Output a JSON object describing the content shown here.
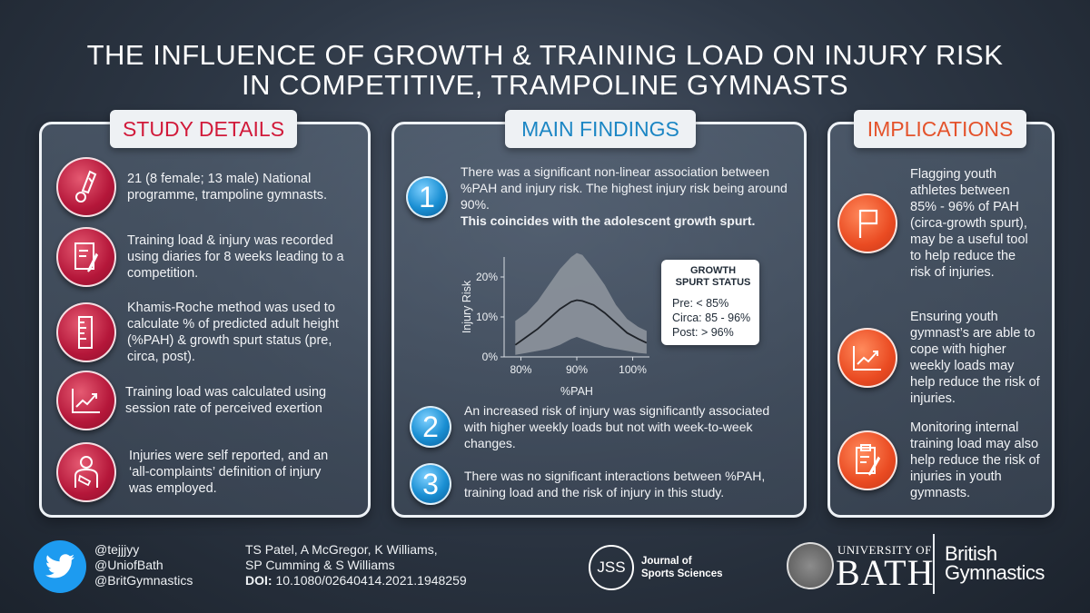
{
  "title": {
    "line1": "THE INFLUENCE OF GROWTH & TRAINING LOAD ON INJURY RISK",
    "line2": "IN COMPETITIVE, TRAMPOLINE GYMNASTS"
  },
  "study_details": {
    "label": "STUDY DETAILS",
    "items": [
      {
        "icon": "trampolinist-icon",
        "text": "21 (8 female; 13 male) National programme, trampoline gymnasts."
      },
      {
        "icon": "diary-icon",
        "text": "Training load & injury was recorded using diaries for 8 weeks leading to a competition."
      },
      {
        "icon": "ruler-icon",
        "text": "Khamis-Roche method was used to calculate % of predicted adult height (%PAH) & growth spurt status (pre, circa, post)."
      },
      {
        "icon": "line-chart-icon",
        "text": "Training load was calculated using session rate of perceived exertion"
      },
      {
        "icon": "injured-person-icon",
        "text": "Injuries were self reported, and an ‘all-complaints’ definition of injury was employed."
      }
    ]
  },
  "main_findings": {
    "label": "MAIN FINDINGS",
    "finding1": {
      "number": "1",
      "text": "There was a significant non-linear association between %PAH and injury risk. The highest injury risk being around 90%.",
      "bold_text": "This coincides with the adolescent growth spurt."
    },
    "finding2": {
      "number": "2",
      "text": "An increased risk of injury was significantly associated with higher weekly loads but not with week-to-week changes."
    },
    "finding3": {
      "number": "3",
      "text": "There was no significant interactions between %PAH, training load and the risk of injury in this study."
    },
    "callout": {
      "title": "GROWTH SPURT STATUS",
      "pre": "Pre: < 85%",
      "circa": "Circa: 85 - 96%",
      "post": "Post: > 96%"
    }
  },
  "chart_data": {
    "type": "line",
    "title": "",
    "xlabel": "%PAH",
    "ylabel": "Injury Risk",
    "xlim": [
      77,
      103
    ],
    "ylim": [
      0,
      25
    ],
    "x_ticks": [
      "80%",
      "90%",
      "100%"
    ],
    "x_tick_values": [
      80,
      90,
      100
    ],
    "y_ticks": [
      "0%",
      "10%",
      "20%"
    ],
    "y_tick_values": [
      0,
      10,
      20
    ],
    "series": [
      {
        "name": "estimate",
        "x": [
          79,
          81,
          83,
          85,
          87,
          89,
          90,
          91,
          93,
          95,
          97,
          99,
          101,
          102.5
        ],
        "values": [
          3,
          5,
          7,
          9.5,
          12,
          13.8,
          14.2,
          14,
          13,
          11,
          8.5,
          6,
          4.5,
          3.5
        ]
      },
      {
        "name": "upper",
        "x": [
          79,
          81,
          83,
          85,
          87,
          89,
          90,
          91,
          93,
          95,
          97,
          99,
          101,
          102.5
        ],
        "values": [
          9,
          11,
          14,
          18,
          22,
          25,
          26,
          25.5,
          22,
          18,
          13,
          9.5,
          7.5,
          6.5
        ]
      },
      {
        "name": "lower",
        "x": [
          79,
          81,
          83,
          85,
          87,
          89,
          90,
          91,
          93,
          95,
          97,
          99,
          101,
          102.5
        ],
        "values": [
          0.5,
          1,
          1.5,
          2,
          3,
          4.5,
          5,
          4.5,
          3.5,
          2.5,
          2,
          1.5,
          1,
          0.8
        ]
      }
    ]
  },
  "implications": {
    "label": "IMPLICATIONS",
    "items": [
      {
        "icon": "flag-icon",
        "text": "Flagging youth athletes between 85% - 96% of PAH (circa-growth spurt), may be a useful tool to help reduce the risk of injuries."
      },
      {
        "icon": "trend-up-icon",
        "text": "Ensuring youth gymnast’s are able to cope with higher weekly loads may help reduce the risk of injuries."
      },
      {
        "icon": "clipboard-icon",
        "text": "Monitoring internal training load may also help reduce the risk of injuries in youth gymnasts."
      }
    ]
  },
  "footer": {
    "handles": [
      "@tejjjyy",
      "@UniofBath",
      "@BritGymnastics"
    ],
    "authors_line1": "TS Patel, A McGregor, K Williams,",
    "authors_line2": "SP Cumming & S Williams",
    "doi_label": "DOI:",
    "doi": "10.1080/02640414.2021.1948259",
    "journal_abbr": "JSS",
    "journal_line1": "Journal of",
    "journal_line2": "Sports Sciences",
    "university_small": "UNIVERSITY OF",
    "university_big": "BATH",
    "bg_line1": "British",
    "bg_line2": "Gymnastics"
  },
  "colors": {
    "red": "#b5173a",
    "blue": "#1a8fd3",
    "orange": "#ea4b22",
    "twitter": "#1d9bf0"
  }
}
